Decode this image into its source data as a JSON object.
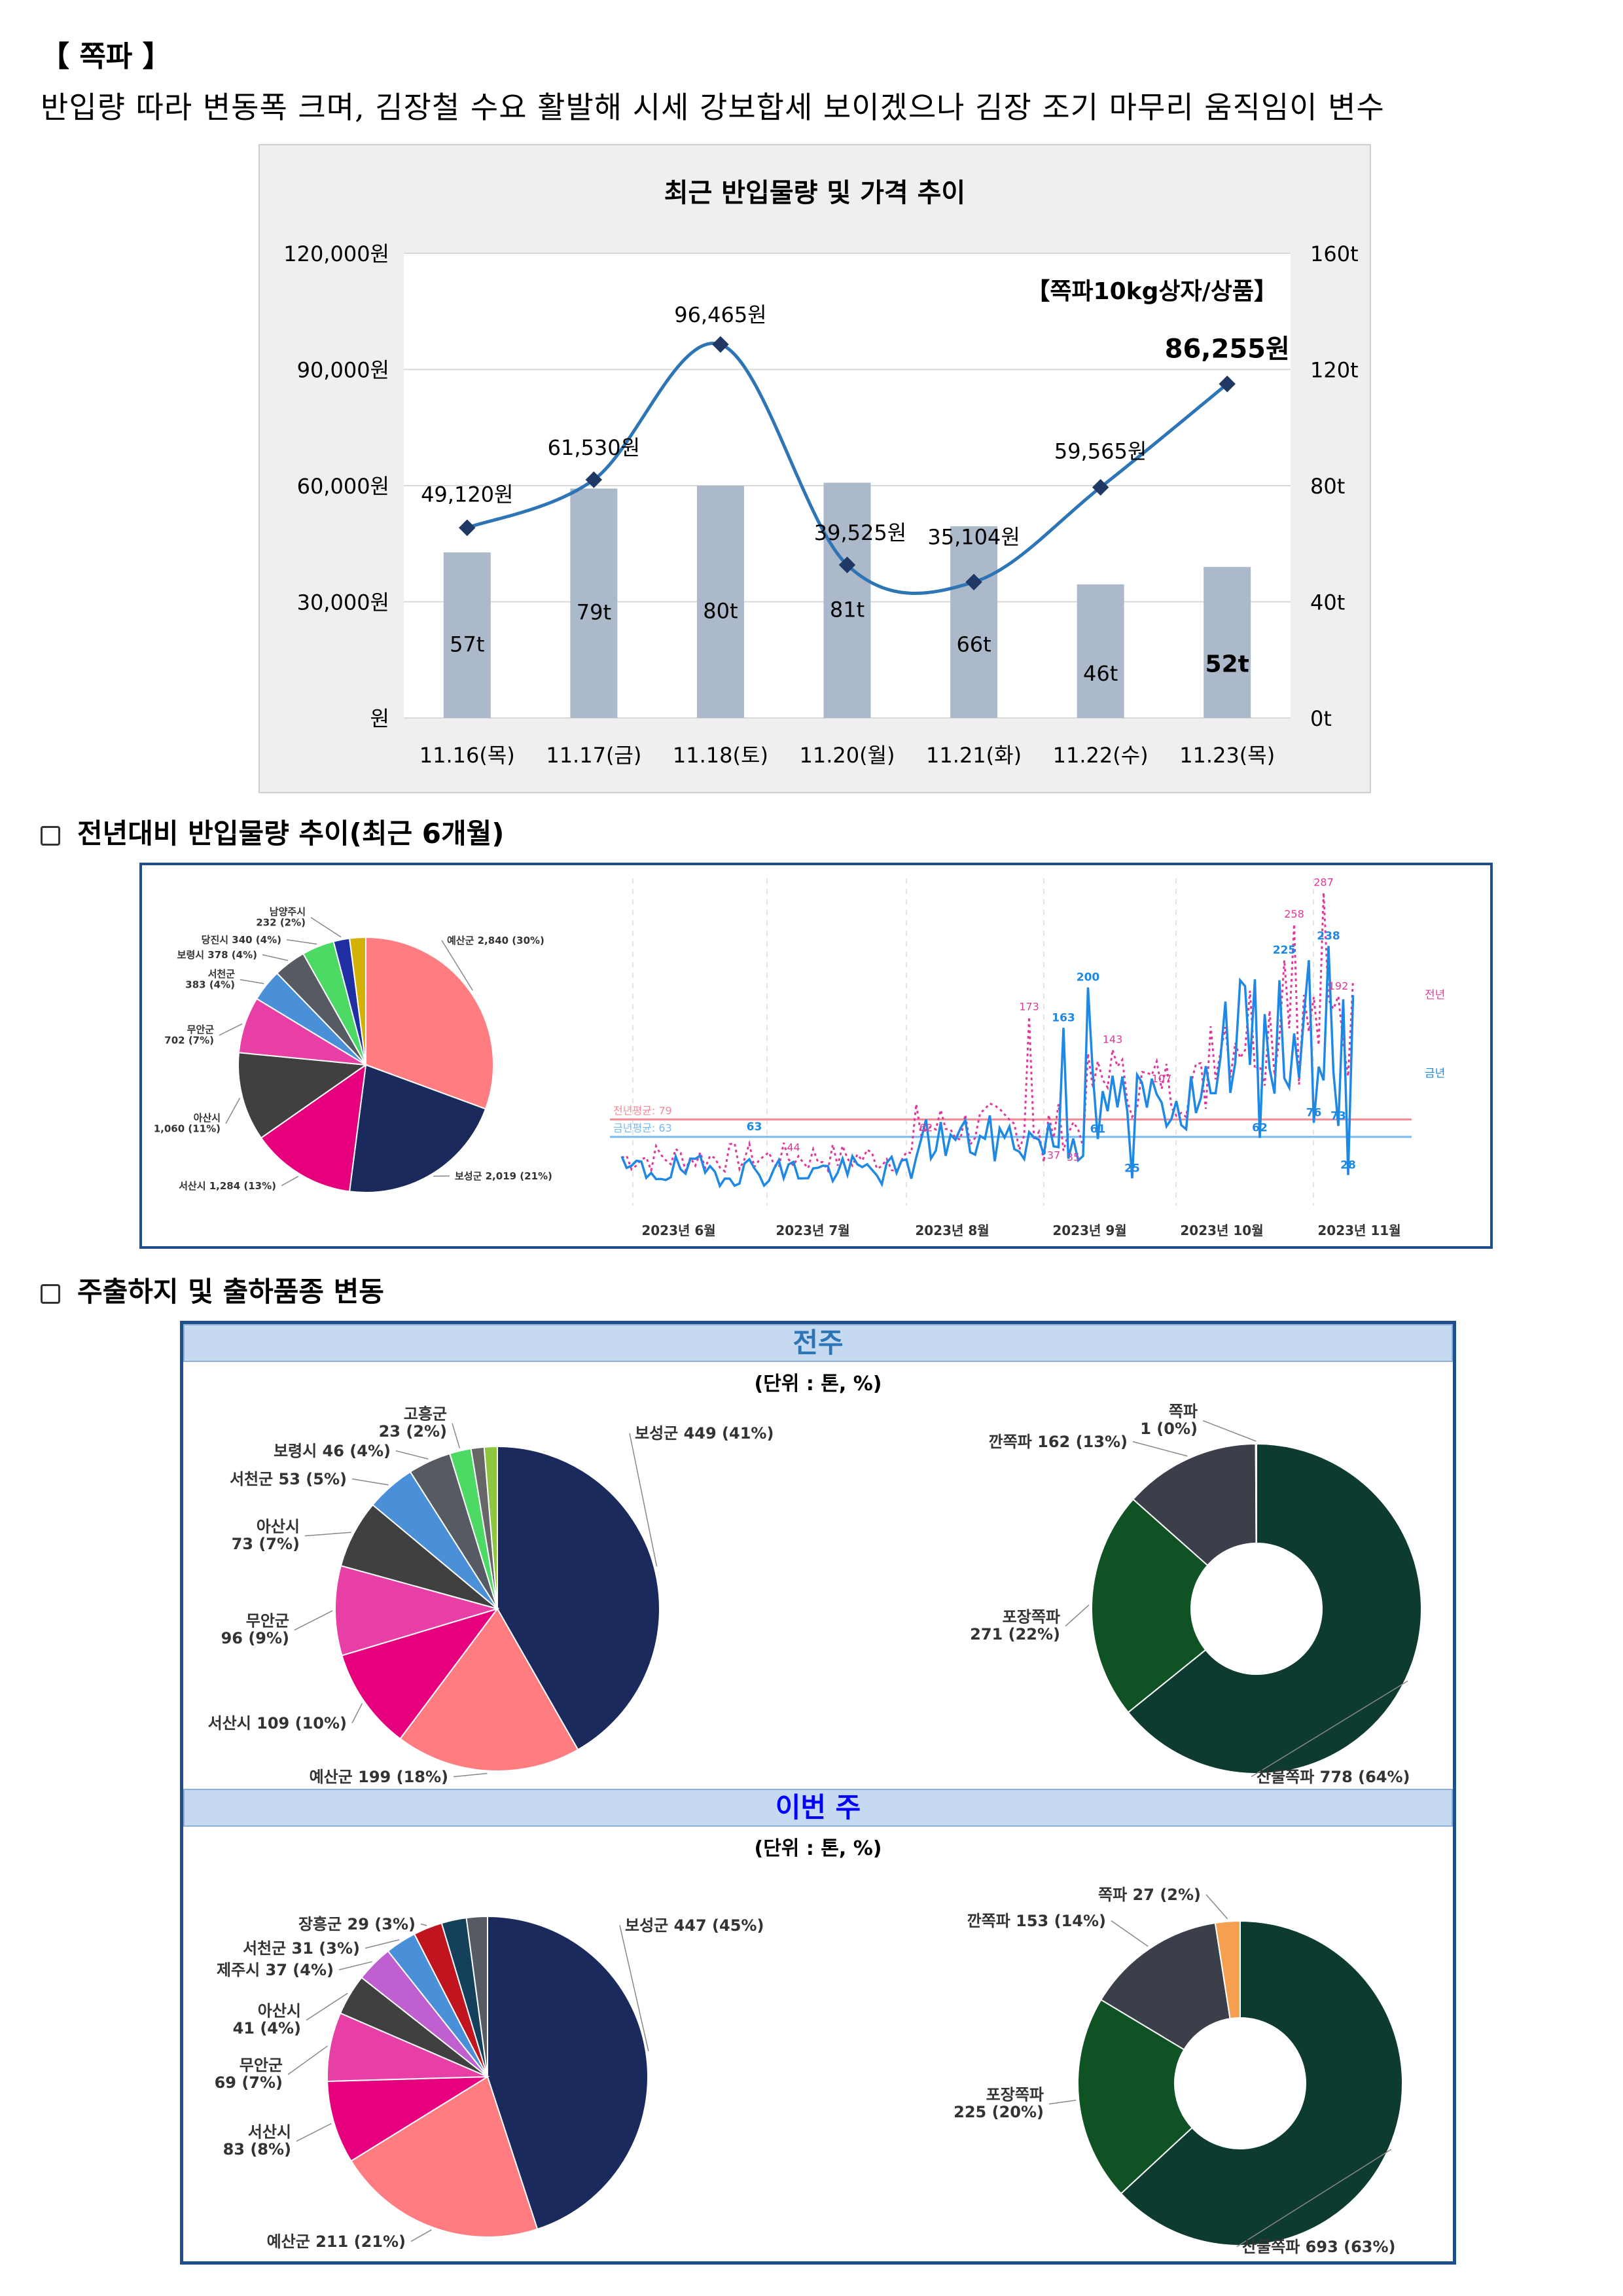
{
  "section_title": "【 쪽파 】",
  "headline": "반입량 따라 변동폭 크며, 김장철 수요 활발해 시세 강보합세 보이겠으나 김장 조기 마무리 움직임이 변수",
  "subsection_1": "전년대비 반입물량 추이(최근 6개월)",
  "subsection_2": "주출하지 및 출하품종 변동",
  "chart_data": [
    {
      "type": "bar",
      "title": "최근 반입물량 및 가격 추이",
      "annotation": "【쪽파10kg상자/상품】",
      "categories": [
        "11.16(목)",
        "11.17(금)",
        "11.18(토)",
        "11.20(월)",
        "11.21(화)",
        "11.22(수)",
        "11.23(목)"
      ],
      "series": [
        {
          "name": "",
          "kind": "bar",
          "values": [
            57,
            79,
            80,
            81,
            66,
            46,
            52
          ],
          "labels": [
            "57t",
            "79t",
            "80t",
            "81t",
            "66t",
            "46t",
            "52t"
          ]
        },
        {
          "name": "",
          "kind": "line",
          "values": [
            49120,
            61530,
            96465,
            39525,
            35104,
            59565,
            86255
          ],
          "labels": [
            "49,120원",
            "61,530원",
            "96,465원",
            "39,525원",
            "35,104원",
            "59,565원",
            "86,255원"
          ]
        }
      ],
      "y_left_ticks": [
        "원",
        "30,000원",
        "60,000원",
        "90,000원",
        "120,000원"
      ],
      "y_left_range": [
        0,
        120000
      ],
      "y_right_ticks": [
        "0t",
        "40t",
        "80t",
        "120t",
        "160t"
      ],
      "y_right_range": [
        0,
        160
      ],
      "colors": {
        "bar": "#acb9ca",
        "line": "#2e75b6",
        "marker": "#1f3864",
        "background": "#efefef"
      }
    },
    {
      "type": "pie",
      "slices": [
        {
          "label": "예산군 2,840 (30%)",
          "value": 30,
          "color": "#ff7c80"
        },
        {
          "label": "보성군 2,019 (21%)",
          "value": 21,
          "color": "#1b2a5c"
        },
        {
          "label": "서산시 1,284 (13%)",
          "value": 13,
          "color": "#e6007e"
        },
        {
          "label": "아산시 1,060 (11%)",
          "value": 11,
          "color": "#404040"
        },
        {
          "label": "무안군 702 (7%)",
          "value": 7,
          "color": "#e83fa6"
        },
        {
          "label": "서천군 383 (4%)",
          "value": 4,
          "color": "#4a90d9"
        },
        {
          "label": "보령시 378 (4%)",
          "value": 4,
          "color": "#555a63"
        },
        {
          "label": "당진시 340 (4%)",
          "value": 4,
          "color": "#4cd964"
        },
        {
          "label": "남양주시 232 (2%)",
          "value": 2,
          "color": "#1f2ea3"
        },
        {
          "label": "",
          "value": 2,
          "color": "#d4b106"
        }
      ]
    },
    {
      "type": "line",
      "x_ticks": [
        "2023년 6월",
        "2023년 7월",
        "2023년 8월",
        "2023년 9월",
        "2023년 10월",
        "2023년 11월"
      ],
      "series": [
        {
          "name": "전년",
          "style": "dotted",
          "color": "#e0389a"
        },
        {
          "name": "금년",
          "style": "solid",
          "color": "#1e88e5"
        }
      ],
      "reference_lines": [
        {
          "label": "전년평균: 79",
          "value": 79,
          "color": "#f28b96"
        },
        {
          "label": "금년평균: 63",
          "value": 63,
          "color": "#7ab8f0"
        }
      ],
      "point_labels": {
        "this_year": [
          "63",
          "163",
          "200",
          "61",
          "25",
          "62",
          "225",
          "76",
          "73",
          "28",
          "238"
        ],
        "last_year": [
          "44",
          "62",
          "173",
          "107",
          "143",
          "258",
          "287",
          "192",
          "37",
          "35"
        ]
      }
    },
    {
      "type": "pie",
      "period": "전주",
      "unit": "(단위 : 톤, %)",
      "slices": [
        {
          "label": "보성군 449 (41%)",
          "value": 449,
          "color": "#1b2a5c"
        },
        {
          "label": "예산군 199 (18%)",
          "value": 199,
          "color": "#ff7c80"
        },
        {
          "label": "서산시 109 (10%)",
          "value": 109,
          "color": "#e6007e"
        },
        {
          "label": "무안군 96 (9%)",
          "value": 96,
          "color": "#e83fa6"
        },
        {
          "label": "아산시 73 (7%)",
          "value": 73,
          "color": "#404040"
        },
        {
          "label": "서천군 53 (5%)",
          "value": 53,
          "color": "#4a90d9"
        },
        {
          "label": "보령시 46 (4%)",
          "value": 46,
          "color": "#555a63"
        },
        {
          "label": "고흥군 23 (2%)",
          "value": 23,
          "color": "#4cd964"
        },
        {
          "label": "",
          "value": 14,
          "color": "#666666"
        },
        {
          "label": "",
          "value": 14,
          "color": "#8dc63f"
        }
      ]
    },
    {
      "type": "pie",
      "period": "전주",
      "donut": true,
      "slices": [
        {
          "label": "산물쪽파 778 (64%)",
          "value": 778,
          "color": "#0d3b30"
        },
        {
          "label": "포장쪽파 271 (22%)",
          "value": 271,
          "color": "#0f5223"
        },
        {
          "label": "깐쪽파 162 (13%)",
          "value": 162,
          "color": "#3b3f4a"
        },
        {
          "label": "쪽파 1 (0%)",
          "value": 1,
          "color": "#d4c65a"
        }
      ]
    },
    {
      "type": "pie",
      "period": "이번 주",
      "unit": "(단위 : 톤, %)",
      "slices": [
        {
          "label": "보성군 447 (45%)",
          "value": 447,
          "color": "#1b2a5c"
        },
        {
          "label": "예산군 211 (21%)",
          "value": 211,
          "color": "#ff7c80"
        },
        {
          "label": "서산시 83 (8%)",
          "value": 83,
          "color": "#e6007e"
        },
        {
          "label": "무안군 69 (7%)",
          "value": 69,
          "color": "#e83fa6"
        },
        {
          "label": "아산시 41 (4%)",
          "value": 41,
          "color": "#404040"
        },
        {
          "label": "제주시 37 (4%)",
          "value": 37,
          "color": "#c060d0"
        },
        {
          "label": "서천군 31 (3%)",
          "value": 31,
          "color": "#4a90d9"
        },
        {
          "label": "장흥군 29 (3%)",
          "value": 29,
          "color": "#c0141e"
        },
        {
          "label": "",
          "value": 25,
          "color": "#14405c"
        },
        {
          "label": "",
          "value": 21,
          "color": "#555a63"
        }
      ]
    },
    {
      "type": "pie",
      "period": "이번 주",
      "donut": true,
      "slices": [
        {
          "label": "산물쪽파 693 (63%)",
          "value": 693,
          "color": "#0d3b30"
        },
        {
          "label": "포장쪽파 225 (20%)",
          "value": 225,
          "color": "#0f5223"
        },
        {
          "label": "깐쪽파 153 (14%)",
          "value": 153,
          "color": "#3b3f4a"
        },
        {
          "label": "쪽파 27 (2%)",
          "value": 27,
          "color": "#f5a050"
        }
      ]
    }
  ]
}
